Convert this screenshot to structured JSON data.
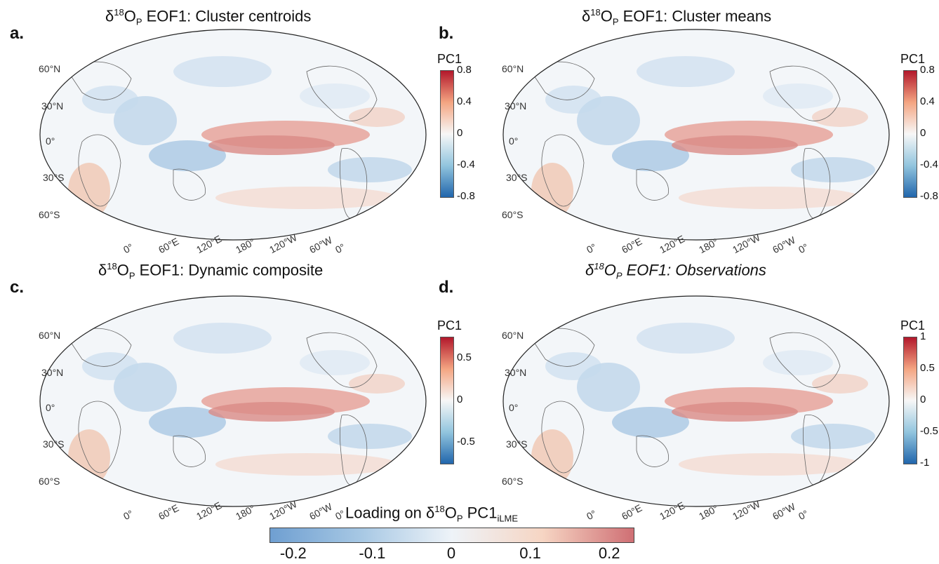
{
  "panels": [
    {
      "letter": "a.",
      "title_pre": "δ",
      "title_sup": "18",
      "title_mid": "O",
      "title_sub": "P",
      "title_post": " EOF1: Cluster centroids",
      "italic": false,
      "pc_label": "PC1",
      "pc_ticks": [
        "0.8",
        "0.4",
        "0",
        "-0.4",
        "-0.8"
      ],
      "pc_colors": [
        "#b2182b",
        "#f4a582",
        "#f7f7f7",
        "#92c5de",
        "#2166ac"
      ]
    },
    {
      "letter": "b.",
      "title_pre": "δ",
      "title_sup": "18",
      "title_mid": "O",
      "title_sub": "P",
      "title_post": " EOF1: Cluster means",
      "italic": false,
      "pc_label": "PC1",
      "pc_ticks": [
        "0.8",
        "0.4",
        "0",
        "-0.4",
        "-0.8"
      ],
      "pc_colors": [
        "#b2182b",
        "#f4a582",
        "#f7f7f7",
        "#92c5de",
        "#2166ac"
      ]
    },
    {
      "letter": "c.",
      "title_pre": "δ",
      "title_sup": "18",
      "title_mid": "O",
      "title_sub": "P",
      "title_post": " EOF1: Dynamic composite",
      "italic": false,
      "pc_label": "PC1",
      "pc_ticks": [
        "0.5",
        "0",
        "-0.5"
      ],
      "pc_colors": [
        "#b2182b",
        "#f4a582",
        "#f7f7f7",
        "#92c5de",
        "#2166ac"
      ]
    },
    {
      "letter": "d.",
      "title_pre": "δ",
      "title_sup": "18",
      "title_mid": "O",
      "title_sub": "P",
      "title_post": " EOF1: Observations",
      "italic": true,
      "pc_label": "PC1",
      "pc_ticks": [
        "1",
        "0.5",
        "0",
        "-0.5",
        "-1"
      ],
      "pc_colors": [
        "#b2182b",
        "#f4a582",
        "#f7f7f7",
        "#92c5de",
        "#2166ac"
      ]
    }
  ],
  "lat_labels": [
    "60°N",
    "30°N",
    "0°",
    "30°S",
    "60°S"
  ],
  "lon_labels": [
    "0°",
    "60°E",
    "120°E",
    "180°",
    "120°W",
    "60°W",
    "0°"
  ],
  "colorbar": {
    "title_pre": "Loading on δ",
    "title_sup": "18",
    "title_mid": "O",
    "title_sub": "P",
    "title_post": " PC1",
    "title_sub2": "iLME",
    "ticks": [
      "-0.2",
      "-0.1",
      "0",
      "0.1",
      "0.2"
    ],
    "tick_values": [
      -0.2,
      -0.1,
      0,
      0.1,
      0.2
    ],
    "range": [
      -0.23,
      0.23
    ]
  },
  "colors": {
    "land_outline": "#666666",
    "station": "#333333",
    "map_border": "#222222"
  }
}
